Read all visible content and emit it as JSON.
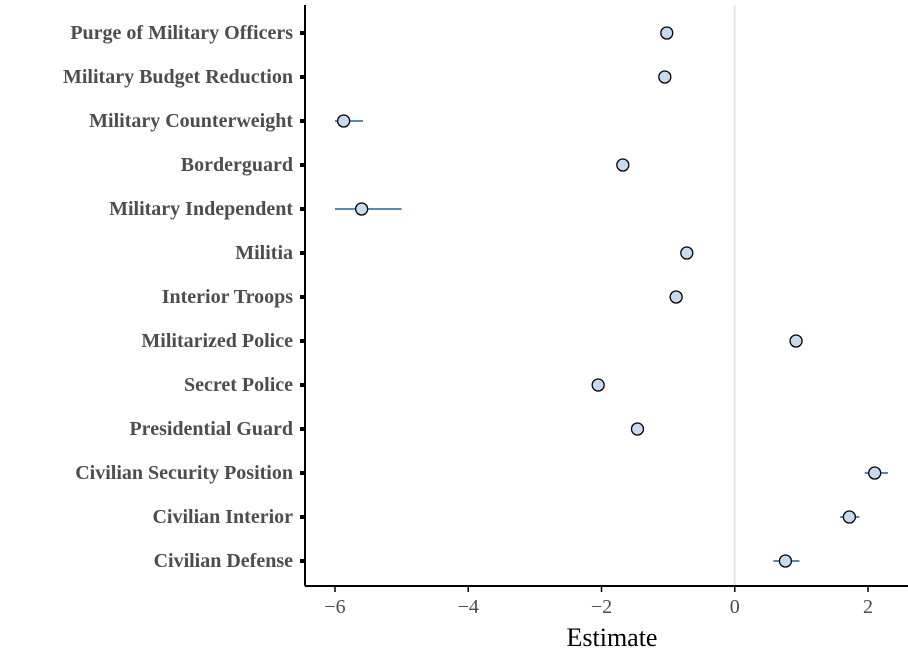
{
  "chart_data": {
    "type": "scatter",
    "title": "",
    "xlabel": "Estimate",
    "ylabel": "",
    "xlim": [
      -6.45,
      2.6
    ],
    "xticks": [
      -6,
      -4,
      -2,
      0,
      2
    ],
    "xtick_labels": [
      "−6",
      "−4",
      "−2",
      "0",
      "2"
    ],
    "reference_line_x": 0,
    "grid": false,
    "categories": [
      "Purge of Military Officers",
      "Military Budget Reduction",
      "Military Counterweight",
      "Borderguard",
      "Military Independent",
      "Militia",
      "Interior Troops",
      "Militarized Police",
      "Secret Police",
      "Presidential Guard",
      "Civilian Security Position",
      "Civilian Interior",
      "Civilian Defense"
    ],
    "values": [
      -1.02,
      -1.05,
      -5.87,
      -1.68,
      -5.6,
      -0.72,
      -0.88,
      0.92,
      -2.05,
      -1.46,
      2.1,
      1.72,
      0.76
    ],
    "ci_low": [
      -1.1,
      -1.12,
      -6.0,
      -1.76,
      -6.0,
      -0.8,
      -0.96,
      0.86,
      -2.13,
      -1.54,
      1.95,
      1.58,
      0.58
    ],
    "ci_high": [
      -0.94,
      -0.98,
      -5.58,
      -1.6,
      -5.0,
      -0.64,
      -0.8,
      0.98,
      -1.97,
      -1.38,
      2.3,
      1.87,
      0.97
    ],
    "colors": {
      "point_fill": "#c6dbef",
      "point_stroke": "#000000",
      "interval": "#4f8cb8",
      "reference_line": "#e6e6e6",
      "axis": "#000000"
    }
  }
}
